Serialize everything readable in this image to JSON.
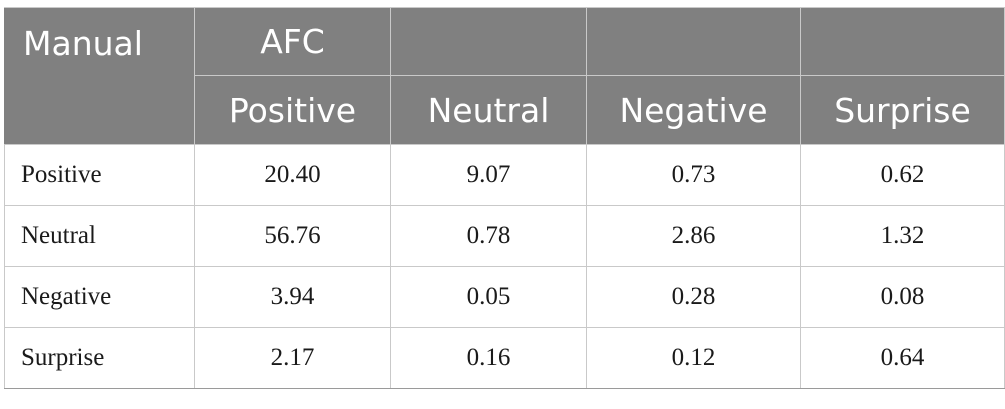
{
  "header": {
    "row_dimension_label": "Manual",
    "column_dimension_label": "AFC",
    "columns": [
      "Positive",
      "Neutral",
      "Negative",
      "Surprise"
    ]
  },
  "rows": [
    {
      "label": "Positive",
      "values": [
        "20.40",
        "9.07",
        "0.73",
        "0.62"
      ]
    },
    {
      "label": "Neutral",
      "values": [
        "56.76",
        "0.78",
        "2.86",
        "1.32"
      ]
    },
    {
      "label": "Negative",
      "values": [
        "3.94",
        "0.05",
        "0.28",
        "0.08"
      ]
    },
    {
      "label": "Surprise",
      "values": [
        "2.17",
        "0.16",
        "0.12",
        "0.64"
      ]
    }
  ]
}
